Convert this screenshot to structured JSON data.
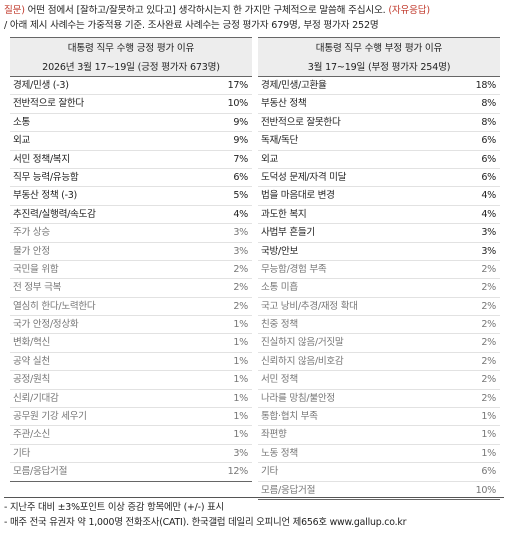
{
  "question": {
    "label": "질문)",
    "line1": "어떤 점에서 [잘하고/잘못하고 있다고] 생각하시는지 한 가지만 구체적으로 말씀해 주십시오.",
    "accent": "(자유응답)",
    "line2": "/ 아래 제시 사례수는 가중적용 기준. 조사완료 사례수는 긍정 평가자 679명, 부정 평가자 252명"
  },
  "positive": {
    "title": "대통령 직무 수행 긍정 평가 이유",
    "subtitle": "2026년 3월 17~19일 (긍정 평가자 673명)",
    "rows": [
      {
        "label": "경제/민생 (-3)",
        "value": "17%",
        "tone": "bold"
      },
      {
        "label": "전반적으로 잘한다",
        "value": "10%",
        "tone": "bold"
      },
      {
        "label": "소통",
        "value": "9%",
        "tone": "bold"
      },
      {
        "label": "외교",
        "value": "9%",
        "tone": "bold"
      },
      {
        "label": "서민 정책/복지",
        "value": "7%",
        "tone": "bold"
      },
      {
        "label": "직무 능력/유능함",
        "value": "6%",
        "tone": "bold"
      },
      {
        "label": "부동산 정책 (-3)",
        "value": "5%",
        "tone": "bold"
      },
      {
        "label": "추진력/실행력/속도감",
        "value": "4%",
        "tone": "bold"
      },
      {
        "label": "주가 상승",
        "value": "3%",
        "tone": "light"
      },
      {
        "label": "물가 안정",
        "value": "3%",
        "tone": "light"
      },
      {
        "label": "국민을 위함",
        "value": "2%",
        "tone": "light"
      },
      {
        "label": "전 정부 극복",
        "value": "2%",
        "tone": "light"
      },
      {
        "label": "열심히 한다/노력한다",
        "value": "2%",
        "tone": "light"
      },
      {
        "label": "국가 안정/정상화",
        "value": "1%",
        "tone": "light"
      },
      {
        "label": "변화/혁신",
        "value": "1%",
        "tone": "light"
      },
      {
        "label": "공약 실천",
        "value": "1%",
        "tone": "light"
      },
      {
        "label": "공정/원칙",
        "value": "1%",
        "tone": "light"
      },
      {
        "label": "신뢰/기대감",
        "value": "1%",
        "tone": "light"
      },
      {
        "label": "공무원 기강 세우기",
        "value": "1%",
        "tone": "light"
      },
      {
        "label": "주관/소신",
        "value": "1%",
        "tone": "light"
      },
      {
        "label": "기타",
        "value": "3%",
        "tone": "light"
      },
      {
        "label": "모름/응답거절",
        "value": "12%",
        "tone": "light"
      }
    ]
  },
  "negative": {
    "title": "대통령 직무 수행 부정 평가 이유",
    "subtitle": "3월 17~19일 (부정 평가자 254명)",
    "rows": [
      {
        "label": "경제/민생/고환율",
        "value": "18%",
        "tone": "bold"
      },
      {
        "label": "부동산 정책",
        "value": "8%",
        "tone": "bold"
      },
      {
        "label": "전반적으로 잘못한다",
        "value": "8%",
        "tone": "bold"
      },
      {
        "label": "독재/독단",
        "value": "6%",
        "tone": "bold"
      },
      {
        "label": "외교",
        "value": "6%",
        "tone": "bold"
      },
      {
        "label": "도덕성 문제/자격 미달",
        "value": "6%",
        "tone": "bold"
      },
      {
        "label": "법을 마음대로 변경",
        "value": "4%",
        "tone": "bold"
      },
      {
        "label": "과도한 복지",
        "value": "4%",
        "tone": "bold"
      },
      {
        "label": "사법부 흔들기",
        "value": "3%",
        "tone": "bold"
      },
      {
        "label": "국방/안보",
        "value": "3%",
        "tone": "bold"
      },
      {
        "label": "무능함/경험 부족",
        "value": "2%",
        "tone": "light"
      },
      {
        "label": "소통 미흡",
        "value": "2%",
        "tone": "light"
      },
      {
        "label": "국고 낭비/추경/재정 확대",
        "value": "2%",
        "tone": "light"
      },
      {
        "label": "친중 정책",
        "value": "2%",
        "tone": "light"
      },
      {
        "label": "진실하지 않음/거짓말",
        "value": "2%",
        "tone": "light"
      },
      {
        "label": "신뢰하지 않음/비호감",
        "value": "2%",
        "tone": "light"
      },
      {
        "label": "서민 정책",
        "value": "2%",
        "tone": "light"
      },
      {
        "label": "나라를 망침/불안정",
        "value": "2%",
        "tone": "light"
      },
      {
        "label": "통합·협치 부족",
        "value": "1%",
        "tone": "light"
      },
      {
        "label": "좌편향",
        "value": "1%",
        "tone": "light"
      },
      {
        "label": "노동 정책",
        "value": "1%",
        "tone": "light"
      },
      {
        "label": "기타",
        "value": "6%",
        "tone": "light"
      },
      {
        "label": "모름/응답거절",
        "value": "10%",
        "tone": "light"
      }
    ]
  },
  "footnotes": [
    "- 지난주 대비 ±3%포인트 이상 증감 항목에만 (+/-) 표시",
    "- 매주 전국 유권자 약 1,000명 전화조사(CATI). 한국갤럽 데일리 오피니언 제656호 www.gallup.co.kr"
  ]
}
